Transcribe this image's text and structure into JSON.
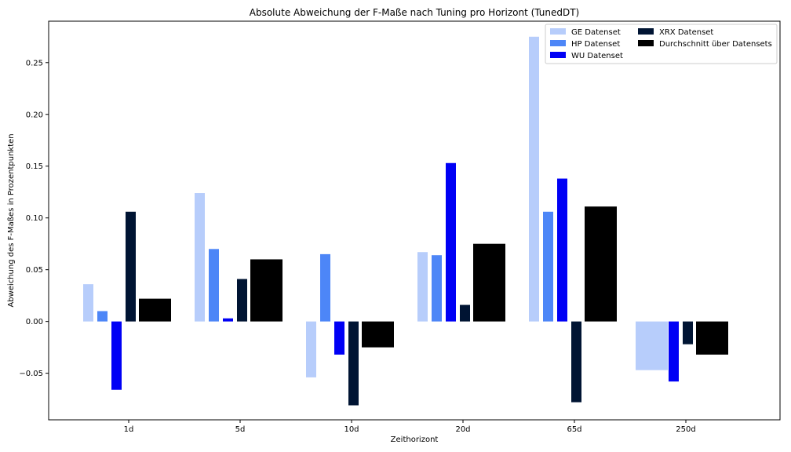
{
  "chart_data": {
    "type": "bar",
    "title": "Absolute Abweichung der F-Maße nach Tuning pro Horizont (TunedDT)",
    "xlabel": "Zeithorizont",
    "ylabel": "Abweichung des F-Maßes in Prozentpunkten",
    "categories": [
      "1d",
      "5d",
      "10d",
      "20d",
      "65d",
      "250d"
    ],
    "ylim": [
      -0.095,
      0.29
    ],
    "yticks": [
      -0.05,
      0.0,
      0.05,
      0.1,
      0.15,
      0.2,
      0.25
    ],
    "ytick_labels": [
      "−0.05",
      "0.00",
      "0.05",
      "0.10",
      "0.15",
      "0.20",
      "0.25"
    ],
    "grid": false,
    "legend_position": "top-right",
    "series": [
      {
        "name": "GE Datenset",
        "color": "#b7cdfb",
        "values": [
          0.036,
          0.124,
          -0.054,
          0.067,
          0.275,
          -0.047
        ]
      },
      {
        "name": "HP Datenset",
        "color": "#4d86f7",
        "values": [
          0.01,
          0.07,
          0.065,
          0.064,
          0.106,
          null
        ]
      },
      {
        "name": "WU Datenset",
        "color": "#0000f5",
        "values": [
          -0.066,
          0.003,
          -0.032,
          0.153,
          0.138,
          -0.058
        ]
      },
      {
        "name": "XRX Datenset",
        "color": "#001433",
        "values": [
          0.106,
          0.041,
          -0.081,
          0.016,
          -0.078,
          -0.022
        ]
      },
      {
        "name": "Durchschnitt über Datensets",
        "color": "#000000",
        "values": [
          0.022,
          0.06,
          -0.025,
          0.075,
          0.111,
          -0.032
        ]
      }
    ]
  }
}
